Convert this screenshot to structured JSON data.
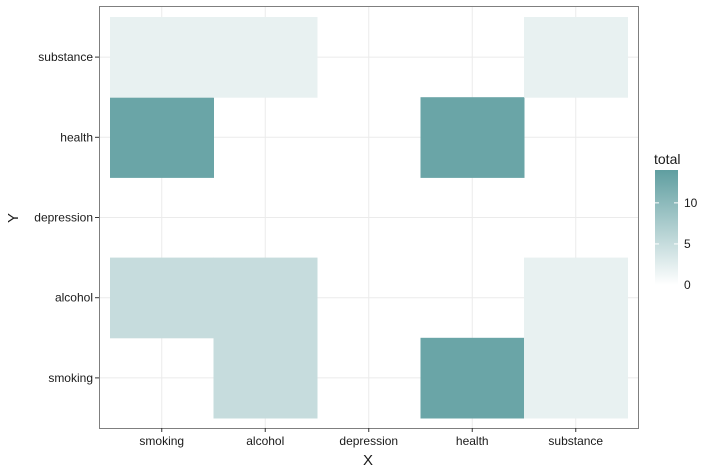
{
  "chart_data": {
    "type": "heatmap",
    "xlabel": "X",
    "ylabel": "Y",
    "x_categories": [
      "smoking",
      "alcohol",
      "depression",
      "health",
      "substance"
    ],
    "y_categories": [
      "smoking",
      "alcohol",
      "depression",
      "health",
      "substance"
    ],
    "cells": [
      {
        "x": "alcohol",
        "y": "smoking",
        "value": 5
      },
      {
        "x": "health",
        "y": "smoking",
        "value": 13
      },
      {
        "x": "substance",
        "y": "smoking",
        "value": 2
      },
      {
        "x": "smoking",
        "y": "alcohol",
        "value": 5
      },
      {
        "x": "alcohol",
        "y": "alcohol",
        "value": 5
      },
      {
        "x": "substance",
        "y": "alcohol",
        "value": 2
      },
      {
        "x": "smoking",
        "y": "health",
        "value": 13
      },
      {
        "x": "health",
        "y": "health",
        "value": 13
      },
      {
        "x": "smoking",
        "y": "substance",
        "value": 2
      },
      {
        "x": "alcohol",
        "y": "substance",
        "value": 2
      },
      {
        "x": "substance",
        "y": "substance",
        "value": 2
      }
    ],
    "legend": {
      "title": "total",
      "ticks": [
        0,
        5,
        10
      ],
      "range": [
        0,
        14
      ],
      "low_color": "#ffffff",
      "high_color": "#5f9ea0",
      "placement": "right"
    },
    "grid": true,
    "panel_border_color": "#7f7f7f",
    "grid_color": "#ebebeb"
  }
}
